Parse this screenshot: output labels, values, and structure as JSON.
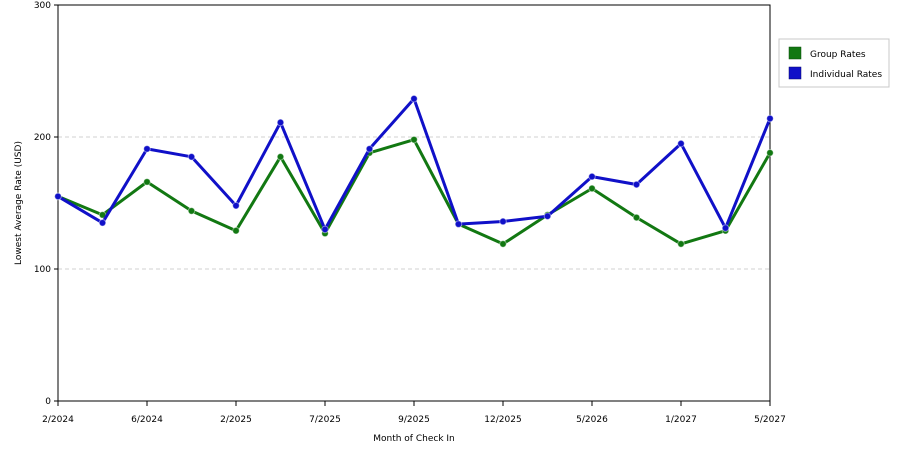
{
  "chart_data": {
    "type": "line",
    "xlabel": "Month of Check In",
    "ylabel": "Lowest Average Rate (USD)",
    "ylim": [
      0,
      300
    ],
    "yticks": [
      0,
      100,
      200,
      300
    ],
    "grid": true,
    "legend_position": "top-right",
    "x_tick_labels": [
      "2/2024",
      "6/2024",
      "2/2025",
      "7/2025",
      "9/2025",
      "12/2025",
      "5/2026",
      "1/2027",
      "5/2027"
    ],
    "series": [
      {
        "name": "Group Rates",
        "color": "#127812",
        "values": [
          155,
          141,
          166,
          144,
          129,
          185,
          127,
          188,
          198,
          134,
          119,
          141,
          161,
          139,
          119,
          129,
          188
        ]
      },
      {
        "name": "Individual Rates",
        "color": "#1010c8",
        "values": [
          155,
          135,
          191,
          185,
          148,
          211,
          130,
          191,
          229,
          134,
          136,
          140,
          170,
          164,
          195,
          131,
          214
        ]
      }
    ]
  }
}
